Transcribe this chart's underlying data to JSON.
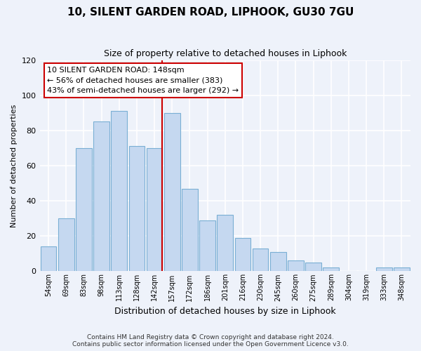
{
  "title": "10, SILENT GARDEN ROAD, LIPHOOK, GU30 7GU",
  "subtitle": "Size of property relative to detached houses in Liphook",
  "xlabel": "Distribution of detached houses by size in Liphook",
  "ylabel": "Number of detached properties",
  "bar_labels": [
    "54sqm",
    "69sqm",
    "83sqm",
    "98sqm",
    "113sqm",
    "128sqm",
    "142sqm",
    "157sqm",
    "172sqm",
    "186sqm",
    "201sqm",
    "216sqm",
    "230sqm",
    "245sqm",
    "260sqm",
    "275sqm",
    "289sqm",
    "304sqm",
    "319sqm",
    "333sqm",
    "348sqm"
  ],
  "bar_heights": [
    14,
    30,
    70,
    85,
    91,
    71,
    70,
    90,
    47,
    29,
    32,
    19,
    13,
    11,
    6,
    5,
    2,
    0,
    0,
    2,
    2
  ],
  "bar_color": "#c5d8f0",
  "bar_edge_color": "#7aafd4",
  "marker_index": 6,
  "marker_color": "#cc0000",
  "ylim": [
    0,
    120
  ],
  "yticks": [
    0,
    20,
    40,
    60,
    80,
    100,
    120
  ],
  "annotation_title": "10 SILENT GARDEN ROAD: 148sqm",
  "annotation_line1": "← 56% of detached houses are smaller (383)",
  "annotation_line2": "43% of semi-detached houses are larger (292) →",
  "footer_line1": "Contains HM Land Registry data © Crown copyright and database right 2024.",
  "footer_line2": "Contains public sector information licensed under the Open Government Licence v3.0.",
  "background_color": "#eef2fa",
  "grid_color": "#ffffff"
}
